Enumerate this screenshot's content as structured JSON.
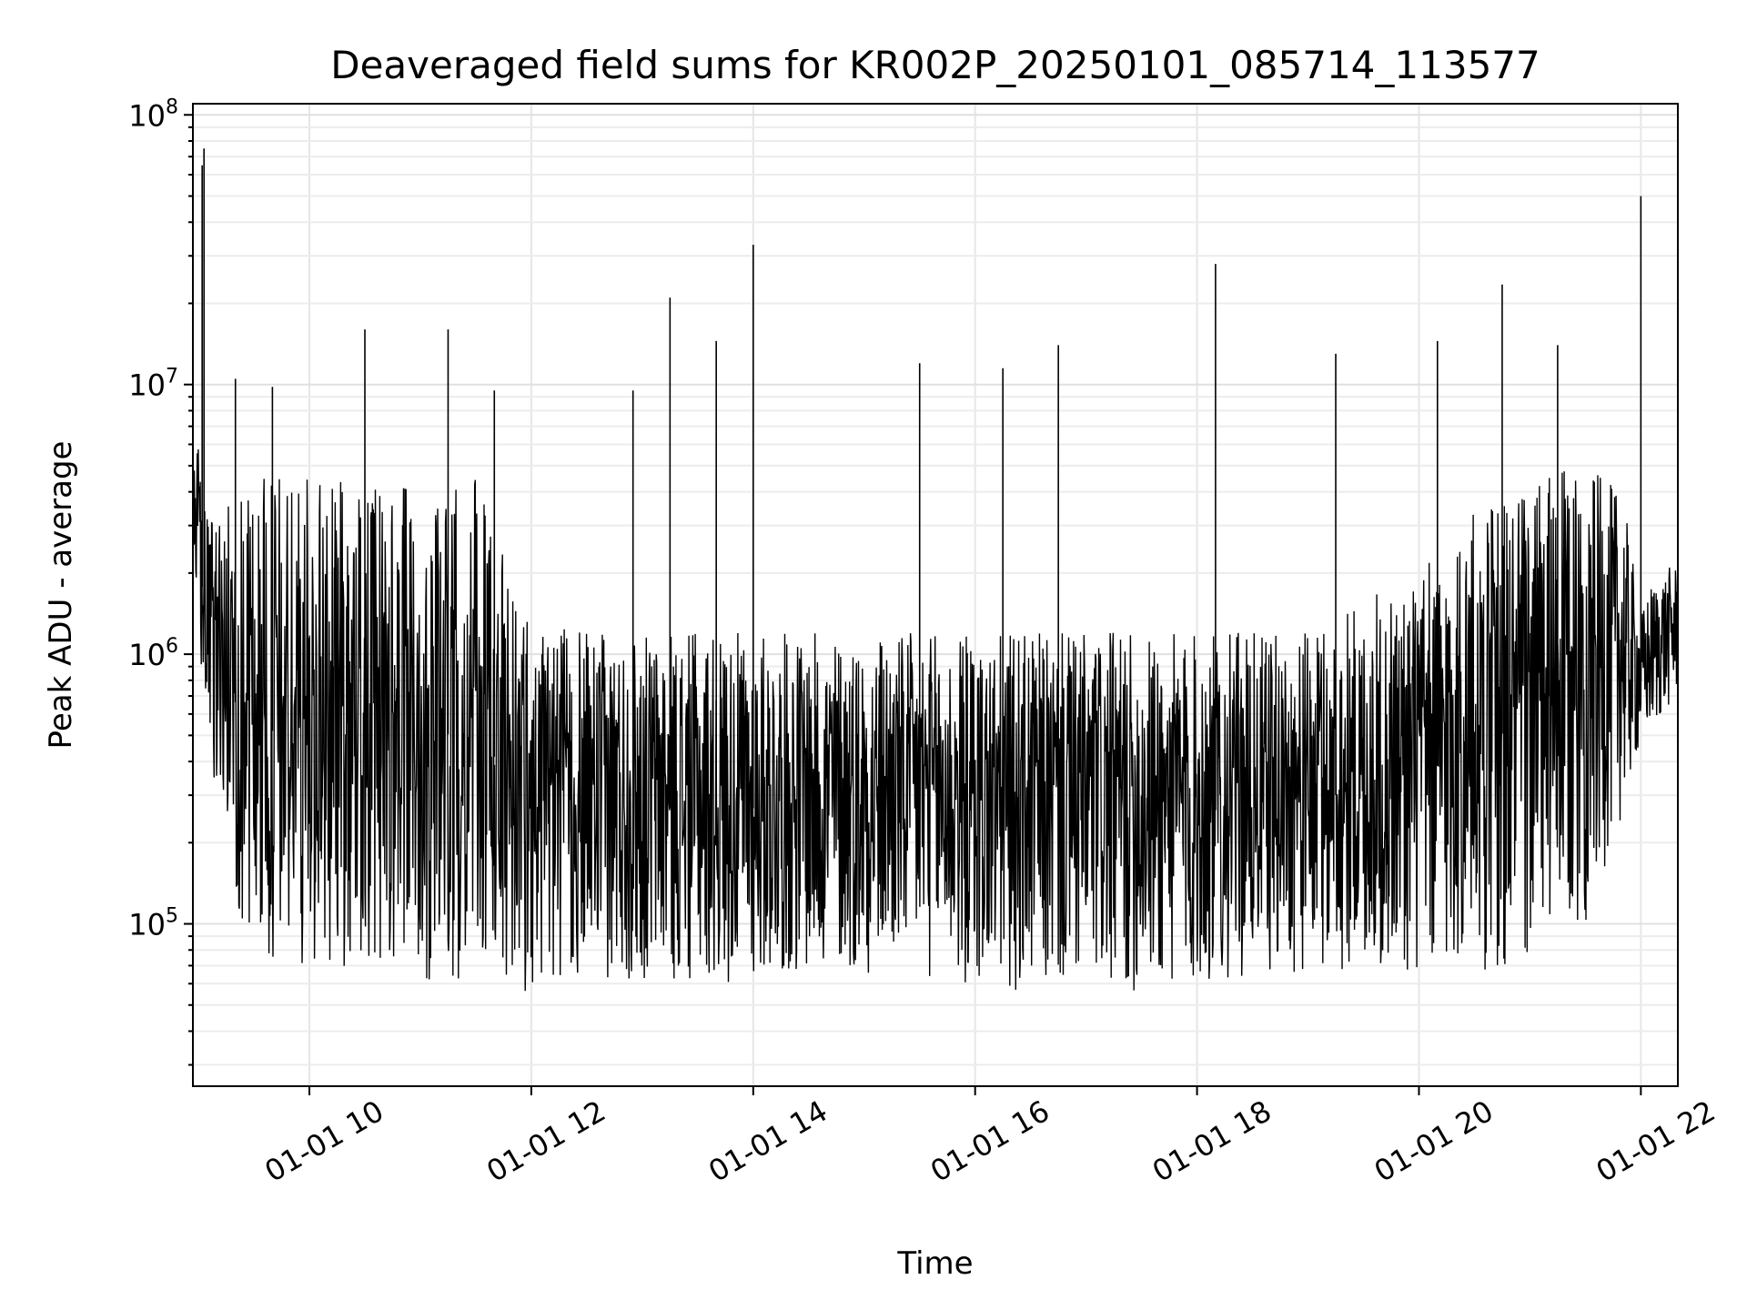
{
  "chart_data": {
    "type": "line",
    "title": "Deaveraged field sums for KR002P_20250101_085714_113577",
    "xlabel": "Time",
    "ylabel": "Peak ADU - average",
    "yscale": "log",
    "ylim": [
      25000,
      110000000
    ],
    "xlim": [
      "2025-01-01 08:57",
      "2025-01-01 22:20"
    ],
    "grid": true,
    "xticks": [
      "01-01 10",
      "01-01 12",
      "01-01 14",
      "01-01 16",
      "01-01 18",
      "01-01 20",
      "01-01 22"
    ],
    "yticks": [
      {
        "base": "10",
        "exp": "5",
        "value": 100000
      },
      {
        "base": "10",
        "exp": "6",
        "value": 1000000
      },
      {
        "base": "10",
        "exp": "7",
        "value": 10000000
      },
      {
        "base": "10",
        "exp": "8",
        "value": 100000000
      }
    ],
    "series": [
      {
        "color": "#000000",
        "x": [
          "2025-01-01 08:57",
          "2025-01-01 09:00",
          "2025-01-01 09:03",
          "2025-01-01 09:06",
          "2025-01-01 09:10",
          "2025-01-01 09:15",
          "2025-01-01 09:20",
          "2025-01-01 09:30",
          "2025-01-01 09:40",
          "2025-01-01 09:55",
          "2025-01-01 10:00",
          "2025-01-01 10:30",
          "2025-01-01 11:00",
          "2025-01-01 11:30",
          "2025-01-01 12:00",
          "2025-01-01 12:30",
          "2025-01-01 13:00",
          "2025-01-01 13:30",
          "2025-01-01 14:00",
          "2025-01-01 14:30",
          "2025-01-01 15:00",
          "2025-01-01 15:30",
          "2025-01-01 16:00",
          "2025-01-01 16:30",
          "2025-01-01 17:00",
          "2025-01-01 17:30",
          "2025-01-01 18:00",
          "2025-01-01 18:30",
          "2025-01-01 19:00",
          "2025-01-01 19:30",
          "2025-01-01 20:00",
          "2025-01-01 20:30",
          "2025-01-01 21:00",
          "2025-01-01 21:30",
          "2025-01-01 21:50",
          "2025-01-01 22:00",
          "2025-01-01 22:05",
          "2025-01-01 22:10",
          "2025-01-01 22:20"
        ],
        "low": [
          1300000,
          1200000,
          600000,
          400000,
          300000,
          150000,
          110000,
          75000,
          60000,
          70000,
          70000,
          65000,
          60000,
          60000,
          55000,
          60000,
          60000,
          60000,
          60000,
          65000,
          65000,
          65000,
          55000,
          55000,
          55000,
          55000,
          55000,
          65000,
          65000,
          65000,
          60000,
          65000,
          65000,
          100000,
          250000,
          450000,
          500000,
          550000,
          700000
        ],
        "high": [
          4500000,
          6000000,
          3500000,
          3000000,
          3500000,
          4000000,
          4000000,
          4500000,
          4500000,
          4500000,
          4500000,
          4500000,
          4000000,
          4500000,
          1300000,
          1200000,
          1200000,
          1200000,
          1200000,
          1200000,
          1200000,
          1200000,
          1200000,
          1200000,
          1200000,
          1200000,
          1200000,
          1200000,
          1200000,
          1600000,
          2000000,
          3500000,
          4500000,
          5000000,
          4000000,
          1400000,
          1800000,
          2000000,
          2200000
        ],
        "spikes": [
          {
            "x": "2025-01-01 09:02",
            "y": 65000000
          },
          {
            "x": "2025-01-01 09:03",
            "y": 75000000
          },
          {
            "x": "2025-01-01 09:20",
            "y": 10500000
          },
          {
            "x": "2025-01-01 09:40",
            "y": 9800000
          },
          {
            "x": "2025-01-01 10:30",
            "y": 16000000
          },
          {
            "x": "2025-01-01 11:15",
            "y": 16000000
          },
          {
            "x": "2025-01-01 11:40",
            "y": 9500000
          },
          {
            "x": "2025-01-01 12:55",
            "y": 9500000
          },
          {
            "x": "2025-01-01 13:15",
            "y": 21000000
          },
          {
            "x": "2025-01-01 13:40",
            "y": 14500000
          },
          {
            "x": "2025-01-01 14:00",
            "y": 33000000
          },
          {
            "x": "2025-01-01 15:30",
            "y": 12000000
          },
          {
            "x": "2025-01-01 16:15",
            "y": 11500000
          },
          {
            "x": "2025-01-01 16:45",
            "y": 14000000
          },
          {
            "x": "2025-01-01 18:10",
            "y": 28000000
          },
          {
            "x": "2025-01-01 19:15",
            "y": 13000000
          },
          {
            "x": "2025-01-01 20:10",
            "y": 14500000
          },
          {
            "x": "2025-01-01 20:45",
            "y": 23500000
          },
          {
            "x": "2025-01-01 21:15",
            "y": 14000000
          },
          {
            "x": "2025-01-01 22:00",
            "y": 50000000
          }
        ]
      }
    ]
  }
}
